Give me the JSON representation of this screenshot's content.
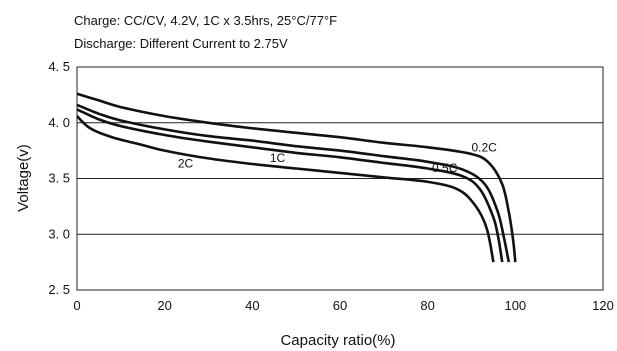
{
  "chart_data": {
    "type": "line",
    "title": "Charge: CC/CV, 4.2V, 1C x 3.5hrs, 25°C/77°F",
    "subtitle": "Discharge: Different Current to 2.75V",
    "xlabel": "Capacity ratio(%)",
    "ylabel": "Voltage(v)",
    "xlim": [
      0,
      120
    ],
    "ylim": [
      2.5,
      4.5
    ],
    "x_ticks": [
      0,
      20,
      40,
      60,
      80,
      100,
      120
    ],
    "x_tick_labels": [
      "0",
      "20",
      "40",
      "60",
      "80",
      "100",
      "120"
    ],
    "y_ticks": [
      2.5,
      3.0,
      3.5,
      4.0,
      4.5
    ],
    "y_tick_labels": [
      "2. 5",
      "3. 0",
      "3. 5",
      "4. 0",
      "4. 5"
    ],
    "grid_y": true,
    "grid_x": false,
    "series": [
      {
        "name": "0.2C",
        "points": [
          [
            0,
            4.26
          ],
          [
            5,
            4.2
          ],
          [
            10,
            4.14
          ],
          [
            20,
            4.06
          ],
          [
            30,
            4.0
          ],
          [
            40,
            3.95
          ],
          [
            50,
            3.91
          ],
          [
            60,
            3.87
          ],
          [
            70,
            3.82
          ],
          [
            80,
            3.78
          ],
          [
            90,
            3.72
          ],
          [
            94,
            3.64
          ],
          [
            97,
            3.45
          ],
          [
            98.5,
            3.2
          ],
          [
            99.5,
            2.95
          ],
          [
            100,
            2.75
          ]
        ]
      },
      {
        "name": "0.5C",
        "points": [
          [
            0,
            4.16
          ],
          [
            5,
            4.08
          ],
          [
            10,
            4.02
          ],
          [
            20,
            3.94
          ],
          [
            30,
            3.88
          ],
          [
            40,
            3.84
          ],
          [
            50,
            3.79
          ],
          [
            60,
            3.75
          ],
          [
            70,
            3.7
          ],
          [
            80,
            3.65
          ],
          [
            88,
            3.58
          ],
          [
            93,
            3.45
          ],
          [
            96,
            3.2
          ],
          [
            97.5,
            2.95
          ],
          [
            98.5,
            2.75
          ]
        ]
      },
      {
        "name": "1C",
        "points": [
          [
            0,
            4.12
          ],
          [
            5,
            4.03
          ],
          [
            10,
            3.97
          ],
          [
            20,
            3.89
          ],
          [
            30,
            3.83
          ],
          [
            40,
            3.78
          ],
          [
            50,
            3.73
          ],
          [
            60,
            3.69
          ],
          [
            70,
            3.64
          ],
          [
            80,
            3.59
          ],
          [
            88,
            3.52
          ],
          [
            92,
            3.4
          ],
          [
            95,
            3.15
          ],
          [
            96.2,
            2.95
          ],
          [
            97,
            2.75
          ]
        ]
      },
      {
        "name": "2C",
        "points": [
          [
            0,
            4.06
          ],
          [
            3,
            3.95
          ],
          [
            8,
            3.87
          ],
          [
            15,
            3.8
          ],
          [
            20,
            3.75
          ],
          [
            30,
            3.68
          ],
          [
            40,
            3.63
          ],
          [
            50,
            3.59
          ],
          [
            60,
            3.55
          ],
          [
            70,
            3.51
          ],
          [
            80,
            3.47
          ],
          [
            87,
            3.4
          ],
          [
            91,
            3.25
          ],
          [
            93.5,
            3.05
          ],
          [
            95,
            2.75
          ]
        ]
      }
    ],
    "series_label_positions": [
      [
        90,
        3.74
      ],
      [
        81,
        3.56
      ],
      [
        44,
        3.65
      ],
      [
        23,
        3.6
      ]
    ]
  }
}
